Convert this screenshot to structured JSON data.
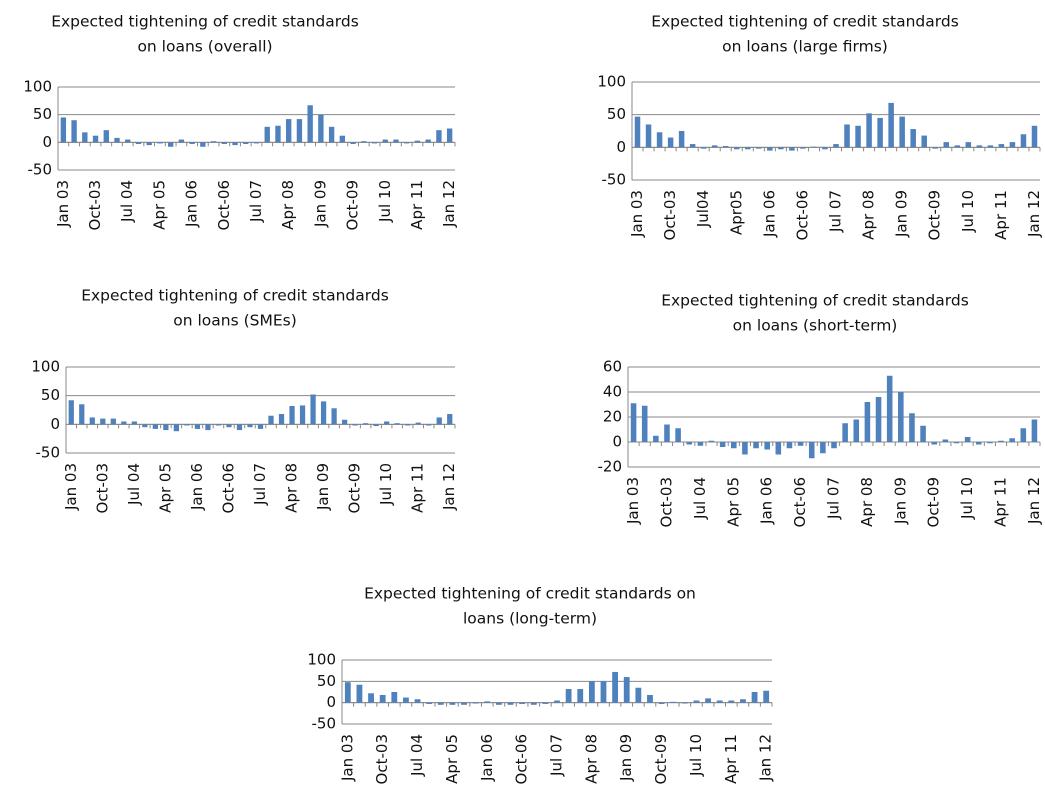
{
  "chart_data": [
    {
      "type": "bar",
      "title": [
        "Expected tightening of credit standards",
        "on loans (overall)"
      ],
      "categories": [
        "Jan 03",
        null,
        null,
        "Oct-03",
        null,
        null,
        "Jul 04",
        null,
        null,
        "Apr 05",
        null,
        null,
        "Jan 06",
        null,
        null,
        "Oct-06",
        null,
        null,
        "Jul 07",
        null,
        null,
        "Apr 08",
        null,
        null,
        "Jan 09",
        null,
        null,
        "Oct-09",
        null,
        null,
        "Jul 10",
        null,
        null,
        "Apr 11",
        null,
        null,
        "Jan 12"
      ],
      "values": [
        45,
        40,
        18,
        12,
        22,
        8,
        5,
        -3,
        -5,
        -2,
        -8,
        5,
        -3,
        -8,
        2,
        -3,
        -5,
        -3,
        -2,
        28,
        30,
        42,
        42,
        67,
        50,
        28,
        12,
        -3,
        2,
        -2,
        5,
        5,
        -2,
        3,
        5,
        22,
        25
      ],
      "color": "#4f81bd",
      "ylim": [
        -50,
        100
      ],
      "yticks": [
        -50,
        0,
        50,
        100
      ],
      "grid": true
    },
    {
      "type": "bar",
      "title": [
        "Expected tightening of credit standards",
        "on loans (large firms)"
      ],
      "categories": [
        "Jan 03",
        null,
        null,
        "Oct-03",
        null,
        null,
        "Jul04",
        null,
        null,
        "Apr05",
        null,
        null,
        "Jan 06",
        null,
        null,
        "Oct-06",
        null,
        null,
        "Jul 07",
        null,
        null,
        "Apr 08",
        null,
        null,
        "Jan 09",
        null,
        null,
        "Oct-09",
        null,
        null,
        "Jul 10",
        null,
        null,
        "Apr 11",
        null,
        null,
        "Jan 12"
      ],
      "values": [
        47,
        35,
        23,
        15,
        25,
        5,
        -2,
        3,
        2,
        -3,
        -3,
        -2,
        -5,
        -3,
        -5,
        -2,
        1,
        -3,
        5,
        35,
        33,
        52,
        45,
        68,
        47,
        28,
        18,
        -2,
        8,
        3,
        8,
        3,
        3,
        5,
        8,
        20,
        33
      ],
      "color": "#4f81bd",
      "ylim": [
        -50,
        100
      ],
      "yticks": [
        -50,
        0,
        50,
        100
      ],
      "grid": true
    },
    {
      "type": "bar",
      "title": [
        "Expected tightening of credit  standards",
        "on loans (SMEs)"
      ],
      "categories": [
        "Jan 03",
        null,
        null,
        "Oct-03",
        null,
        null,
        "Jul 04",
        null,
        null,
        "Apr 05",
        null,
        null,
        "Jan 06",
        null,
        null,
        "Oct-06",
        null,
        null,
        "Jul 07",
        null,
        null,
        "Apr 08",
        null,
        null,
        "Jan 09",
        null,
        null,
        "Oct-09",
        null,
        null,
        "Jul 10",
        null,
        null,
        "Apr 11",
        null,
        null,
        "Jan 12"
      ],
      "values": [
        42,
        35,
        12,
        10,
        10,
        5,
        5,
        -5,
        -8,
        -10,
        -12,
        -2,
        -8,
        -10,
        -2,
        -5,
        -10,
        -5,
        -8,
        15,
        18,
        32,
        33,
        52,
        40,
        28,
        8,
        -2,
        2,
        -3,
        5,
        2,
        -2,
        3,
        -2,
        12,
        18
      ],
      "color": "#4f81bd",
      "ylim": [
        -50,
        100
      ],
      "yticks": [
        -50,
        0,
        50,
        100
      ],
      "grid": true
    },
    {
      "type": "bar",
      "title": [
        "Expected tightening of credit standards",
        "on loans (short-term)"
      ],
      "categories": [
        "Jan 03",
        null,
        null,
        "Oct-03",
        null,
        null,
        "Jul 04",
        null,
        null,
        "Apr 05",
        null,
        null,
        "Jan 06",
        null,
        null,
        "Oct-06",
        null,
        null,
        "Jul 07",
        null,
        null,
        "Apr 08",
        null,
        null,
        "Jan 09",
        null,
        null,
        "Oct-09",
        null,
        null,
        "Jul 10",
        null,
        null,
        "Apr 11",
        null,
        null,
        "Jan 12"
      ],
      "values": [
        31,
        29,
        5,
        14,
        11,
        -2,
        -3,
        1,
        -4,
        -5,
        -10,
        -5,
        -6,
        -10,
        -5,
        -3,
        -13,
        -9,
        -5,
        15,
        18,
        32,
        36,
        53,
        40,
        23,
        13,
        -2,
        2,
        -1,
        4,
        -2,
        -1,
        1,
        3,
        11,
        18
      ],
      "color": "#4f81bd",
      "ylim": [
        -20,
        60
      ],
      "yticks": [
        -20,
        0,
        20,
        40,
        60
      ],
      "grid": true
    },
    {
      "type": "bar",
      "title": [
        "Expected tightening of credit standards on",
        "loans (long-term)"
      ],
      "categories": [
        "Jan 03",
        null,
        null,
        "Oct-03",
        null,
        null,
        "Jul 04",
        null,
        null,
        "Apr 05",
        null,
        null,
        "Jan 06",
        null,
        null,
        "Oct-06",
        null,
        null,
        "Jul 07",
        null,
        null,
        "Apr 08",
        null,
        null,
        "Jan 09",
        null,
        null,
        "Oct-09",
        null,
        null,
        "Jul 10",
        null,
        null,
        "Apr 11",
        null,
        null,
        "Jan 12"
      ],
      "values": [
        48,
        42,
        22,
        18,
        25,
        12,
        8,
        -3,
        -5,
        -5,
        -5,
        -2,
        3,
        -5,
        -5,
        -3,
        -5,
        -3,
        5,
        32,
        32,
        50,
        50,
        72,
        60,
        35,
        18,
        -3,
        2,
        -2,
        5,
        10,
        5,
        5,
        8,
        25,
        28
      ],
      "color": "#4f81bd",
      "ylim": [
        -50,
        100
      ],
      "yticks": [
        -50,
        0,
        50,
        100
      ],
      "grid": true
    }
  ]
}
